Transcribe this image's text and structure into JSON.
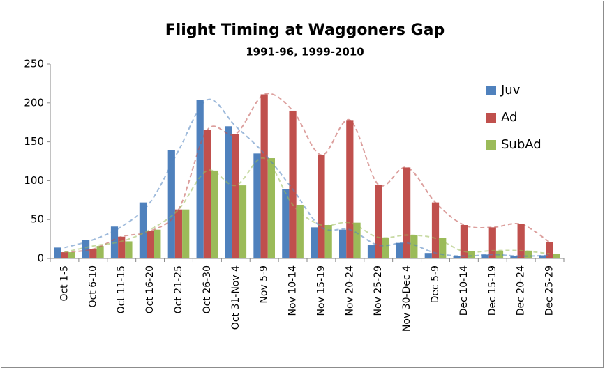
{
  "chart_data": {
    "type": "bar",
    "title": "Flight Timing at Waggoners Gap",
    "subtitle": "1991-96, 1999-2010",
    "categories": [
      "Oct 1-5",
      "Oct 6-10",
      "Oct 11-15",
      "Oct 16-20",
      "Oct 21-25",
      "Oct 26-30",
      "Oct 31-Nov 4",
      "Nov 5-9",
      "Nov 10-14",
      "Nov 15-19",
      "Nov 20-24",
      "Nov 25-29",
      "Nov 30-Dec 4",
      "Dec 5-9",
      "Dec 10-14",
      "Dec 15-19",
      "Dec 20-24",
      "Dec 25-29"
    ],
    "series": [
      {
        "name": "Juv",
        "color": "#4f81bd",
        "values": [
          14,
          24,
          41,
          72,
          139,
          204,
          170,
          135,
          89,
          40,
          37,
          17,
          20,
          7,
          3,
          5,
          3,
          4
        ]
      },
      {
        "name": "Ad",
        "color": "#c0504d",
        "values": [
          8,
          12,
          28,
          35,
          63,
          165,
          160,
          211,
          190,
          133,
          178,
          95,
          117,
          72,
          43,
          40,
          44,
          21
        ]
      },
      {
        "name": "SubAd",
        "color": "#9bbb59",
        "values": [
          8,
          16,
          22,
          37,
          63,
          113,
          94,
          129,
          69,
          43,
          46,
          27,
          30,
          26,
          9,
          10,
          10,
          6
        ]
      }
    ],
    "ylim": [
      0,
      250
    ],
    "yticks": [
      0,
      50,
      100,
      150,
      200,
      250
    ],
    "grid": false,
    "legend": "right"
  }
}
